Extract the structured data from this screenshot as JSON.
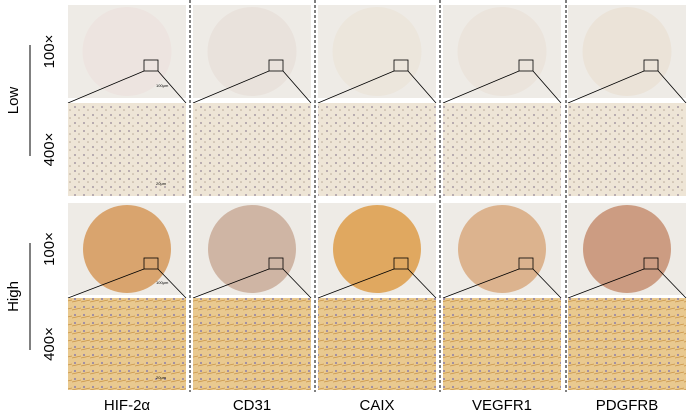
{
  "columns": [
    "HIF-2α",
    "CD31",
    "CAIX",
    "VEGFR1",
    "PDGFRB"
  ],
  "row_groups": [
    {
      "label": "Low",
      "magnifications": [
        "100×",
        "400×"
      ]
    },
    {
      "label": "High",
      "magnifications": [
        "100×",
        "400×"
      ]
    }
  ],
  "scale_bars": [
    "100μm",
    "20μm"
  ]
}
